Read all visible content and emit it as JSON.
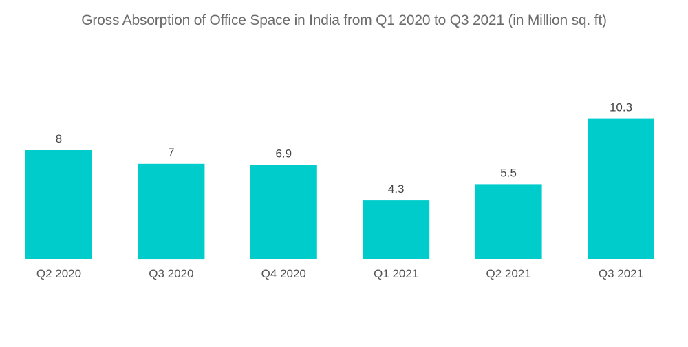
{
  "chart_data": {
    "type": "bar",
    "title": "Gross Absorption of Office Space in India from Q1 2020 to Q3 2021 (in Million sq. ft)",
    "xlabel": "",
    "ylabel": "",
    "categories": [
      "Q2 2020",
      "Q3 2020",
      "Q4 2020",
      "Q1 2021",
      "Q2 2021",
      "Q3 2021"
    ],
    "values": [
      8,
      7,
      6.9,
      4.3,
      5.5,
      10.3
    ],
    "value_labels": [
      "8",
      "7",
      "6.9",
      "4.3",
      "5.5",
      "10.3"
    ],
    "ylim": [
      0,
      10.3
    ],
    "grid": false,
    "legend": "none",
    "colors": {
      "bar": "#00CCCC"
    }
  }
}
